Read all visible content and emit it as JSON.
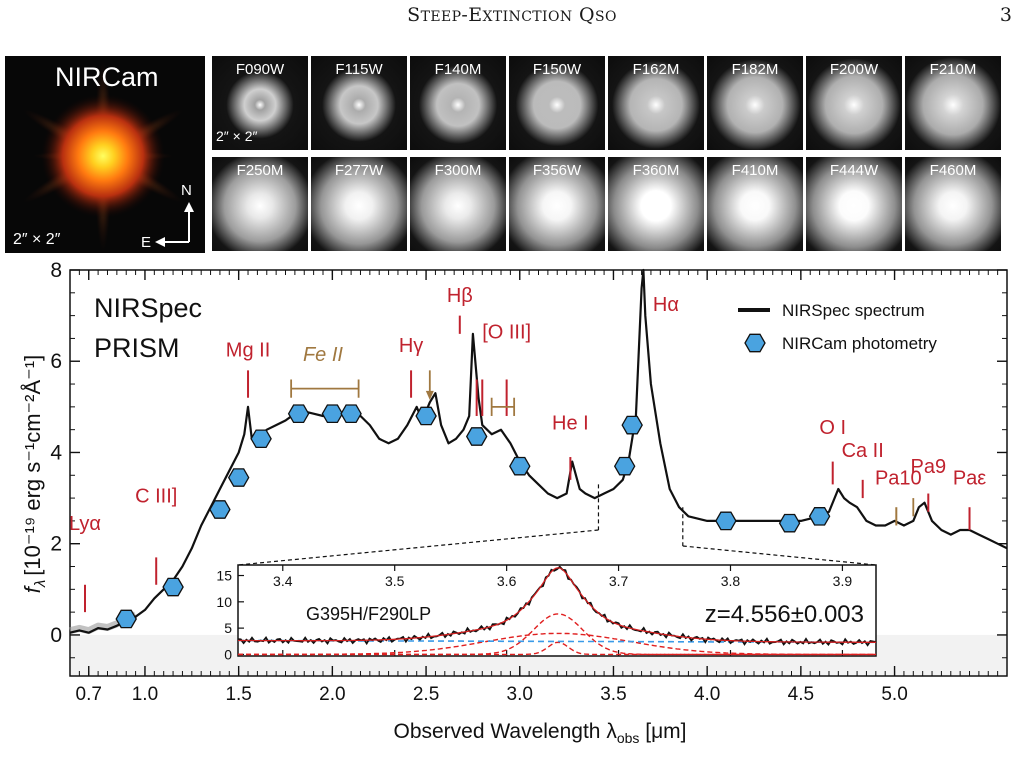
{
  "header": {
    "title_caps": [
      "S",
      "E",
      "Q"
    ],
    "title_parts": [
      "TEEP",
      "-",
      "XTINCTION",
      "SO"
    ],
    "page_number": "3"
  },
  "nircam_panel": {
    "title": "NIRCam",
    "scale": "2″ × 2″",
    "compass_north": "N",
    "compass_east": "E"
  },
  "filters": {
    "row1": [
      "F090W",
      "F115W",
      "F140M",
      "F150W",
      "F162M",
      "F182M",
      "F200W",
      "F210M"
    ],
    "row2": [
      "F250M",
      "F277W",
      "F300M",
      "F356W",
      "F360M",
      "F410M",
      "F444W",
      "F460M"
    ],
    "row1_brightness": [
      0.18,
      0.28,
      0.35,
      0.42,
      0.5,
      0.55,
      0.58,
      0.62
    ],
    "row2_brightness": [
      0.8,
      0.88,
      0.82,
      0.92,
      1.0,
      0.95,
      0.97,
      0.9
    ],
    "scale_label": "2″ × 2″"
  },
  "spectrum_panel": {
    "label_line1": "NIRSpec",
    "label_line2": "PRISM",
    "legend": [
      "NIRSpec spectrum",
      "NIRCam photometry"
    ],
    "ylabel": "f",
    "ylabel_sub": "λ",
    "ylabel_units": "[10⁻¹⁹ erg s⁻¹cm⁻²Å⁻¹]",
    "xlabel": "Observed Wavelength λ",
    "xlabel_sub": "obs",
    "xlabel_units": " [μm]",
    "colors": {
      "line": "#c0222e",
      "feii": "#a07840",
      "photometry": "#4aa3e0",
      "spectrum": "#111111"
    }
  },
  "chart_data": {
    "type": "line",
    "xlim": [
      0.6,
      5.6
    ],
    "ylim": [
      -0.9,
      8
    ],
    "x_ticks": [
      "0.7",
      "1.0",
      "1.5",
      "2.0",
      "2.5",
      "3.0",
      "3.5",
      "4.0",
      "4.5",
      "5.0"
    ],
    "x_tick_values": [
      0.7,
      1.0,
      1.5,
      2.0,
      2.5,
      3.0,
      3.5,
      4.0,
      4.5,
      5.0
    ],
    "y_ticks": [
      "0",
      "2",
      "4",
      "6",
      "8"
    ],
    "y_tick_values": [
      0,
      2,
      4,
      6,
      8
    ],
    "series": [
      {
        "name": "NIRSpec spectrum",
        "x": [
          0.6,
          0.65,
          0.7,
          0.75,
          0.8,
          0.85,
          0.9,
          0.95,
          1.0,
          1.05,
          1.1,
          1.15,
          1.2,
          1.25,
          1.3,
          1.35,
          1.4,
          1.45,
          1.5,
          1.53,
          1.55,
          1.57,
          1.6,
          1.65,
          1.7,
          1.75,
          1.8,
          1.85,
          1.9,
          1.95,
          2.0,
          2.05,
          2.1,
          2.15,
          2.2,
          2.25,
          2.3,
          2.35,
          2.4,
          2.45,
          2.48,
          2.52,
          2.55,
          2.58,
          2.62,
          2.66,
          2.7,
          2.73,
          2.75,
          2.78,
          2.8,
          2.85,
          2.9,
          2.95,
          3.0,
          3.05,
          3.1,
          3.15,
          3.2,
          3.25,
          3.28,
          3.32,
          3.35,
          3.4,
          3.45,
          3.5,
          3.55,
          3.58,
          3.62,
          3.65,
          3.66,
          3.67,
          3.7,
          3.75,
          3.8,
          3.85,
          3.9,
          4.0,
          4.1,
          4.2,
          4.3,
          4.4,
          4.5,
          4.6,
          4.65,
          4.7,
          4.73,
          4.76,
          4.8,
          4.85,
          4.9,
          4.95,
          5.0,
          5.05,
          5.1,
          5.13,
          5.16,
          5.2,
          5.25,
          5.3,
          5.35,
          5.4,
          5.45,
          5.5,
          5.55,
          5.6
        ],
        "y": [
          0.05,
          0.1,
          0.05,
          0.15,
          0.12,
          0.2,
          0.3,
          0.4,
          0.55,
          0.8,
          1.0,
          1.2,
          1.5,
          1.9,
          2.4,
          2.8,
          3.2,
          3.6,
          4.0,
          4.4,
          5.0,
          4.3,
          4.3,
          4.5,
          4.6,
          4.7,
          4.85,
          4.9,
          4.85,
          4.8,
          4.8,
          4.85,
          4.9,
          4.8,
          4.6,
          4.3,
          4.2,
          4.3,
          4.6,
          5.0,
          4.7,
          5.1,
          5.3,
          4.6,
          4.2,
          4.3,
          4.5,
          4.8,
          6.6,
          5.2,
          4.6,
          4.4,
          4.5,
          4.2,
          3.8,
          3.5,
          3.3,
          3.1,
          3.0,
          3.1,
          3.8,
          3.2,
          3.1,
          3.0,
          3.1,
          3.2,
          3.4,
          3.8,
          4.8,
          7.6,
          8.0,
          7.0,
          5.5,
          4.2,
          3.2,
          2.8,
          2.6,
          2.5,
          2.5,
          2.5,
          2.5,
          2.5,
          2.5,
          2.6,
          2.7,
          3.2,
          3.0,
          2.9,
          2.8,
          2.5,
          2.4,
          2.4,
          2.5,
          2.4,
          2.5,
          2.8,
          2.9,
          2.5,
          2.3,
          2.2,
          2.3,
          2.3,
          2.2,
          2.1,
          2.0,
          1.9
        ]
      },
      {
        "name": "NIRCam photometry",
        "x": [
          0.9,
          1.15,
          1.4,
          1.5,
          1.62,
          1.82,
          2.0,
          2.1,
          2.5,
          2.77,
          3.0,
          3.56,
          3.6,
          4.1,
          4.44,
          4.6
        ],
        "y": [
          0.35,
          1.05,
          2.75,
          3.45,
          4.3,
          4.85,
          4.85,
          4.85,
          4.8,
          4.35,
          3.7,
          3.7,
          4.6,
          2.5,
          2.45,
          2.6
        ]
      }
    ],
    "line_labels": [
      {
        "text": "Lyα",
        "x": 0.68,
        "y_text": 2.3,
        "tick_top": 1.1,
        "tick_bottom": 0.5
      },
      {
        "text": "C III]",
        "x": 1.06,
        "y_text": 2.9,
        "tick_top": 1.7,
        "tick_bottom": 1.1
      },
      {
        "text": "Mg II",
        "x": 1.55,
        "y_text": 6.1,
        "tick_top": 5.8,
        "tick_bottom": 5.2
      },
      {
        "text": "Hγ",
        "x": 2.42,
        "y_text": 6.2,
        "tick_top": 5.8,
        "tick_bottom": 5.2
      },
      {
        "text": "Hβ",
        "x": 2.68,
        "y_text": 7.3,
        "tick_top": 7.0,
        "tick_bottom": 6.6
      },
      {
        "text": "[O III]",
        "x": 2.93,
        "y_text": 6.5,
        "tick_top": 5.6,
        "tick_bottom": 4.8
      },
      {
        "text": "He I",
        "x": 3.27,
        "y_text": 4.5,
        "tick_top": 3.9,
        "tick_bottom": 3.4
      },
      {
        "text": "Hα",
        "x": 3.78,
        "y_text": 7.1,
        "tick_top": null,
        "tick_bottom": null
      },
      {
        "text": "O I",
        "x": 4.67,
        "y_text": 4.4,
        "tick_top": 3.8,
        "tick_bottom": 3.3
      },
      {
        "text": "Ca II",
        "x": 4.83,
        "y_text": 3.9,
        "tick_top": 3.4,
        "tick_bottom": 3.0
      },
      {
        "text": "Pa10",
        "x": 5.02,
        "y_text": 3.3,
        "tick_top": 2.8,
        "tick_bottom": 2.4
      },
      {
        "text": "Pa9",
        "x": 5.18,
        "y_text": 3.55,
        "tick_top": 3.1,
        "tick_bottom": 2.7
      },
      {
        "text": "Paε",
        "x": 5.4,
        "y_text": 3.3,
        "tick_top": 2.8,
        "tick_bottom": 2.3
      }
    ],
    "feii_label": "Fe II"
  },
  "inset": {
    "label": "G395H/F290LP",
    "redshift": "z=4.556±0.003",
    "x_ticks": [
      "3.4",
      "3.5",
      "3.6",
      "3.7",
      "3.8",
      "3.9"
    ],
    "x_tick_values": [
      3.4,
      3.5,
      3.6,
      3.7,
      3.8,
      3.9
    ],
    "y_ticks": [
      "0",
      "5",
      "10",
      "15"
    ],
    "y_tick_values": [
      0,
      5,
      10,
      15
    ],
    "xlim": [
      3.36,
      3.93
    ],
    "ylim": [
      -0.3,
      17
    ],
    "peak_flux": 16.2,
    "peak_wavelength": 3.646,
    "continuum_flux": 2.5
  }
}
